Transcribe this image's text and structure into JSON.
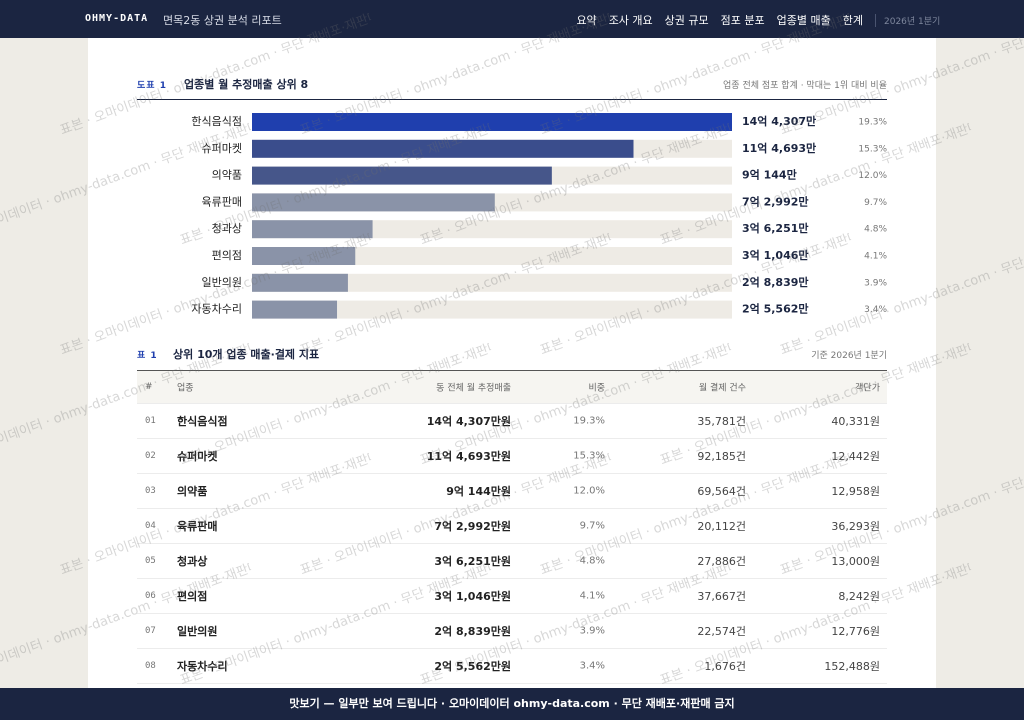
{
  "nav": {
    "brand": "OHMY-DATA",
    "report_title": "면목2동 상권 분석 리포트",
    "links": [
      "요약",
      "조사 개요",
      "상권 규모",
      "점포 분포",
      "업종별 매출",
      "한계"
    ],
    "period": "2026년 1분기"
  },
  "chart_data": {
    "type": "bar",
    "orientation": "horizontal",
    "label": "도표 1",
    "title": "업종별 월 추정매출 상위 8",
    "note": "업종 전체 점포 합계 · 막대는 1위 대비 비율",
    "categories": [
      "한식음식점",
      "슈퍼마켓",
      "의약품",
      "육류판매",
      "청과상",
      "편의점",
      "일반의원",
      "자동차수리"
    ],
    "values": [
      144307,
      114693,
      90144,
      72992,
      36251,
      31046,
      28839,
      25562
    ],
    "value_labels": [
      "14억 4,307만",
      "11억 4,693만",
      "9억 144만",
      "7억 2,992만",
      "3억 6,251만",
      "3억 1,046만",
      "2억 8,839만",
      "2억 5,562만"
    ],
    "shares": [
      19.3,
      15.3,
      12.0,
      9.7,
      4.8,
      4.1,
      3.9,
      3.4
    ],
    "share_labels": [
      "19.3%",
      "15.3%",
      "12.0%",
      "9.7%",
      "4.8%",
      "4.1%",
      "3.9%",
      "3.4%"
    ],
    "colors": [
      "#1f3fae",
      "#3a4d8c",
      "#46568a",
      "#8a93a8",
      "#8a93a8",
      "#8a93a8",
      "#8a93a8",
      "#8a93a8"
    ]
  },
  "table": {
    "label": "표 1",
    "title": "상위 10개 업종 매출·결제 지표",
    "note": "기준 2026년 1분기",
    "columns": [
      "#",
      "업종",
      "동 전체 월 추정매출",
      "비중",
      "월 결제 건수",
      "객단가"
    ],
    "rows": [
      [
        "01",
        "한식음식점",
        "14억 4,307만원",
        "19.3%",
        "35,781건",
        "40,331원"
      ],
      [
        "02",
        "슈퍼마켓",
        "11억 4,693만원",
        "15.3%",
        "92,185건",
        "12,442원"
      ],
      [
        "03",
        "의약품",
        "9억 144만원",
        "12.0%",
        "69,564건",
        "12,958원"
      ],
      [
        "04",
        "육류판매",
        "7억 2,992만원",
        "9.7%",
        "20,112건",
        "36,293원"
      ],
      [
        "05",
        "청과상",
        "3억 6,251만원",
        "4.8%",
        "27,886건",
        "13,000원"
      ],
      [
        "06",
        "편의점",
        "3억 1,046만원",
        "4.1%",
        "37,667건",
        "8,242원"
      ],
      [
        "07",
        "일반의원",
        "2억 8,839만원",
        "3.9%",
        "22,574건",
        "12,776원"
      ],
      [
        "08",
        "자동차수리",
        "2억 5,562만원",
        "3.4%",
        "1,676건",
        "152,488원"
      ]
    ]
  },
  "watermark": "표본 · 오마이데이터 · ohmy-data.com · 무단 재배포·재판매 금지",
  "footer": "맛보기 — 일부만 보여 드립니다 · 오마이데이터 ohmy-data.com · 무단 재배포·재판매 금지"
}
